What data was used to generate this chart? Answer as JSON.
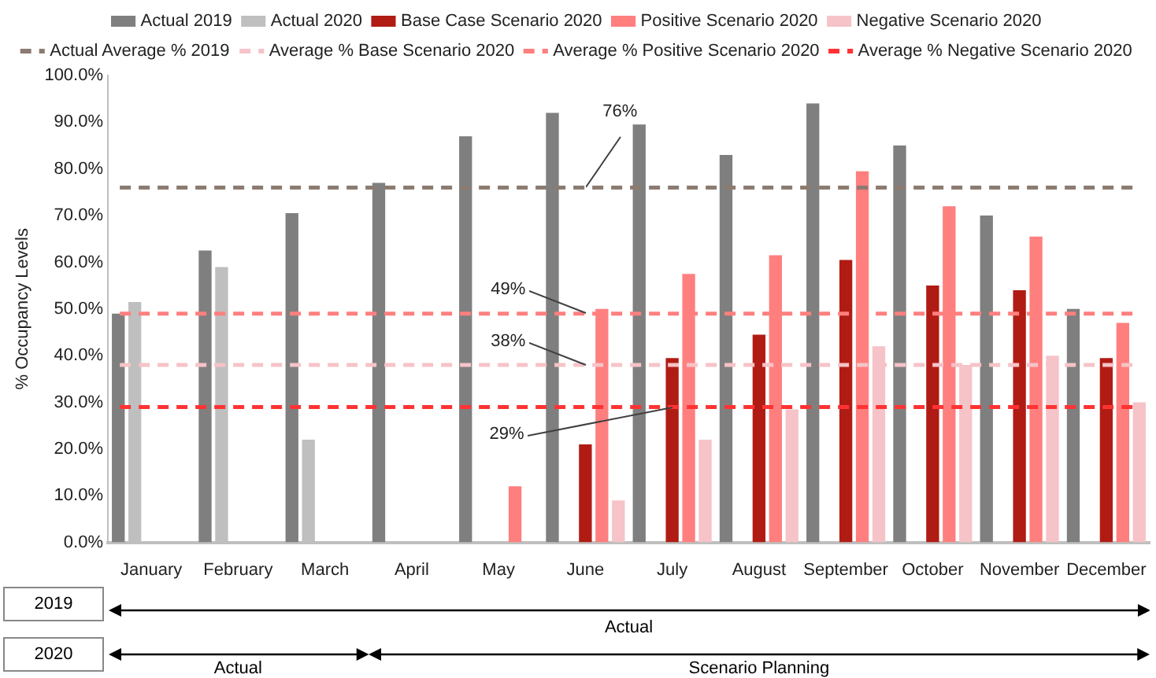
{
  "chart_data": {
    "type": "bar",
    "ylabel": "% Occupancy Levels",
    "categories": [
      "January",
      "February",
      "March",
      "April",
      "May",
      "June",
      "July",
      "August",
      "September",
      "October",
      "November",
      "December"
    ],
    "series": [
      {
        "name": "Actual 2019",
        "color": "#7f7f7f",
        "values": [
          49,
          62.5,
          70.5,
          77,
          87,
          92,
          89.5,
          83,
          94,
          85,
          70,
          50
        ]
      },
      {
        "name": "Actual 2020",
        "color": "#bfbfbf",
        "values": [
          51.5,
          59,
          22,
          null,
          null,
          null,
          null,
          null,
          null,
          null,
          null,
          null
        ]
      },
      {
        "name": "Base Case Scenario 2020",
        "color": "#b01c14",
        "values": [
          null,
          null,
          null,
          null,
          null,
          21,
          39.5,
          44.5,
          60.5,
          55,
          54,
          39.5
        ]
      },
      {
        "name": "Positive Scenario 2020",
        "color": "#ff7f7f",
        "values": [
          null,
          null,
          null,
          null,
          12,
          50,
          57.5,
          61.5,
          79.5,
          72,
          65.5,
          47
        ]
      },
      {
        "name": "Negative Scenario 2020",
        "color": "#f6c3c8",
        "values": [
          null,
          null,
          null,
          null,
          null,
          9,
          22,
          28.5,
          42,
          38,
          40,
          30
        ]
      }
    ],
    "ref_lines": [
      {
        "axis": "y",
        "value": 76,
        "label": "Actual Average % 2019",
        "color": "#8c7b70",
        "line_style": "dashed"
      },
      {
        "axis": "y",
        "value": 38,
        "label": "Average % Base Scenario 2020",
        "color": "#f6c3c8",
        "line_style": "dashed"
      },
      {
        "axis": "y",
        "value": 49,
        "label": "Average % Positive Scenario 2020",
        "color": "#ff7f7f",
        "line_style": "dashed"
      },
      {
        "axis": "y",
        "value": 29,
        "label": "Average % Negative Scenario 2020",
        "color": "#ff3333",
        "line_style": "dashed"
      }
    ],
    "annotations": [
      {
        "text": "76%",
        "x": "June",
        "y": 76
      },
      {
        "text": "49%",
        "x": "June",
        "y": 49
      },
      {
        "text": "38%",
        "x": "June",
        "y": 38
      },
      {
        "text": "29%",
        "x": "July",
        "y": 29
      },
      "2019",
      "Actual",
      "2020",
      "Actual",
      "Scenario Planning"
    ],
    "ylim": [
      0,
      100
    ],
    "yticks": [
      {
        "value": 0,
        "label": "0.0%"
      },
      {
        "value": 10,
        "label": "10.0%"
      },
      {
        "value": 20,
        "label": "20.0%"
      },
      {
        "value": 30,
        "label": "30.0%"
      },
      {
        "value": 40,
        "label": "40.0%"
      },
      {
        "value": 50,
        "label": "50.0%"
      },
      {
        "value": 60,
        "label": "60.0%"
      },
      {
        "value": 70,
        "label": "70.0%"
      },
      {
        "value": 80,
        "label": "80.0%"
      },
      {
        "value": 90,
        "label": "90.0%"
      },
      {
        "value": 100,
        "label": "100.0%"
      }
    ],
    "grid": false,
    "legend": "top"
  }
}
